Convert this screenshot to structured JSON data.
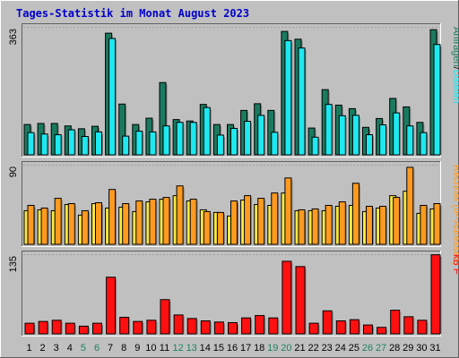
{
  "title": "Tages-Statistik im Monat August 2023",
  "colors": {
    "background": "#c0c0c0",
    "panel": "#c0c0c0",
    "grid": "#a0a0a0",
    "title": "#0000cc",
    "requests_dark": "#1a7a60",
    "files_cyan": "#1ee8f0",
    "visits_light": "#f8e840",
    "computers_orange": "#ff9a20",
    "kb_red": "#ff1010",
    "weekend_day": "#208060",
    "weekday_day": "#000000"
  },
  "chart_data": [
    {
      "type": "bar",
      "ylim": [
        0,
        363
      ],
      "ymax_label": "363",
      "series": [
        {
          "name": "Anfragen",
          "values": [
            86,
            89,
            89,
            82,
            74,
            81,
            345,
            144,
            86,
            104,
            205,
            100,
            96,
            143,
            86,
            86,
            126,
            145,
            126,
            350,
            328,
            76,
            185,
            141,
            131,
            78,
            103,
            160,
            136,
            92,
            355
          ]
        },
        {
          "name": "Dateien",
          "values": [
            63,
            59,
            57,
            71,
            52,
            65,
            330,
            53,
            67,
            65,
            82,
            92,
            92,
            134,
            56,
            75,
            95,
            112,
            64,
            324,
            303,
            50,
            143,
            111,
            112,
            57,
            85,
            119,
            82,
            63,
            313
          ]
        }
      ],
      "legend": [
        "Anfragen",
        "/",
        "Dateien"
      ],
      "legend_colors": [
        "requests_dark",
        "text",
        "files_cyan"
      ]
    },
    {
      "type": "bar",
      "ylim": [
        0,
        90
      ],
      "ymax_label": "90",
      "series": [
        {
          "name": "Besuche",
          "values": [
            38,
            39,
            38,
            45,
            33,
            46,
            41,
            42,
            37,
            48,
            51,
            55,
            49,
            39,
            36,
            32,
            50,
            45,
            44,
            58,
            38,
            38,
            38,
            43,
            44,
            37,
            41,
            55,
            60,
            35,
            40
          ]
        },
        {
          "name": "Rechner (IP-Adressen)",
          "values": [
            44,
            41,
            52,
            46,
            38,
            47,
            62,
            46,
            49,
            51,
            53,
            66,
            51,
            37,
            36,
            49,
            55,
            52,
            58,
            75,
            39,
            40,
            44,
            48,
            69,
            43,
            43,
            53,
            87,
            44,
            46
          ]
        }
      ],
      "legend": [
        "Rechner (IP-Adressen)"
      ],
      "legend_colors": [
        "computers_orange"
      ]
    },
    {
      "type": "bar",
      "ylim": [
        0,
        135
      ],
      "ymax_label": "135",
      "series": [
        {
          "name": "kB F",
          "values": [
            18,
            21,
            23,
            18,
            13,
            18,
            96,
            28,
            21,
            23,
            58,
            32,
            26,
            22,
            20,
            19,
            27,
            31,
            27,
            123,
            114,
            18,
            39,
            22,
            24,
            15,
            11,
            40,
            29,
            23,
            134
          ]
        }
      ],
      "legend": [
        "kB F"
      ],
      "legend_colors": [
        "kb_red"
      ]
    }
  ],
  "days": [
    "1",
    "2",
    "3",
    "4",
    "5",
    "6",
    "7",
    "8",
    "9",
    "10",
    "11",
    "12",
    "13",
    "14",
    "15",
    "16",
    "17",
    "18",
    "19",
    "20",
    "21",
    "22",
    "23",
    "24",
    "25",
    "26",
    "27",
    "28",
    "29",
    "30",
    "31"
  ],
  "weekend_days": [
    5,
    6,
    12,
    13,
    19,
    20,
    26,
    27
  ]
}
